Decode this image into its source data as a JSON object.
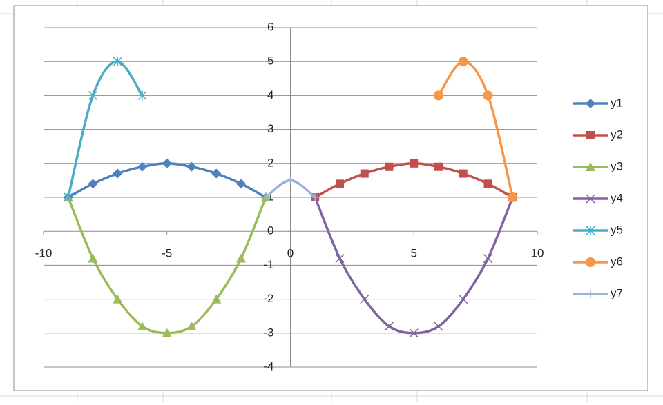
{
  "chart_data": {
    "type": "scatter",
    "xlim": [
      -10,
      10
    ],
    "xticks": [
      -10,
      -5,
      0,
      5,
      10
    ],
    "ylim": [
      -4,
      6
    ],
    "yticks": [
      -4,
      -3,
      -2,
      -1,
      0,
      1,
      2,
      3,
      4,
      5,
      6
    ],
    "grid": true,
    "legend": "right",
    "smooth": true,
    "series": [
      {
        "name": "y1",
        "color": "#4f81bd",
        "marker": "diamond",
        "x": [
          -9,
          -8,
          -7,
          -6,
          -5,
          -4,
          -3,
          -2,
          -1
        ],
        "values": [
          1,
          1.4,
          1.7,
          1.9,
          2,
          1.9,
          1.7,
          1.4,
          1
        ]
      },
      {
        "name": "y2",
        "color": "#c0504d",
        "marker": "square",
        "x": [
          1,
          2,
          3,
          4,
          5,
          6,
          7,
          8,
          9
        ],
        "values": [
          1,
          1.4,
          1.7,
          1.9,
          2,
          1.9,
          1.7,
          1.4,
          1
        ]
      },
      {
        "name": "y3",
        "color": "#9bbb59",
        "marker": "triangle",
        "x": [
          -9,
          -8,
          -7,
          -6,
          -5,
          -4,
          -3,
          -2,
          -1
        ],
        "values": [
          1,
          -0.8,
          -2,
          -2.8,
          -3,
          -2.8,
          -2,
          -0.8,
          1
        ]
      },
      {
        "name": "y4",
        "color": "#8064a2",
        "marker": "x",
        "x": [
          1,
          2,
          3,
          4,
          5,
          6,
          7,
          8,
          9
        ],
        "values": [
          1,
          -0.8,
          -2,
          -2.8,
          -3,
          -2.8,
          -2,
          -0.8,
          1
        ]
      },
      {
        "name": "y5",
        "color": "#4bacc6",
        "marker": "star",
        "x": [
          -9,
          -8,
          -7,
          -6
        ],
        "values": [
          1,
          4,
          5,
          4
        ]
      },
      {
        "name": "y6",
        "color": "#f79646",
        "marker": "circle",
        "x": [
          6,
          7,
          8,
          9
        ],
        "values": [
          4,
          5,
          4,
          1
        ]
      },
      {
        "name": "y7",
        "color": "#9bb0dc",
        "marker": "plus",
        "x": [
          -1,
          0,
          1
        ],
        "values": [
          1,
          1.5,
          1
        ]
      }
    ]
  }
}
